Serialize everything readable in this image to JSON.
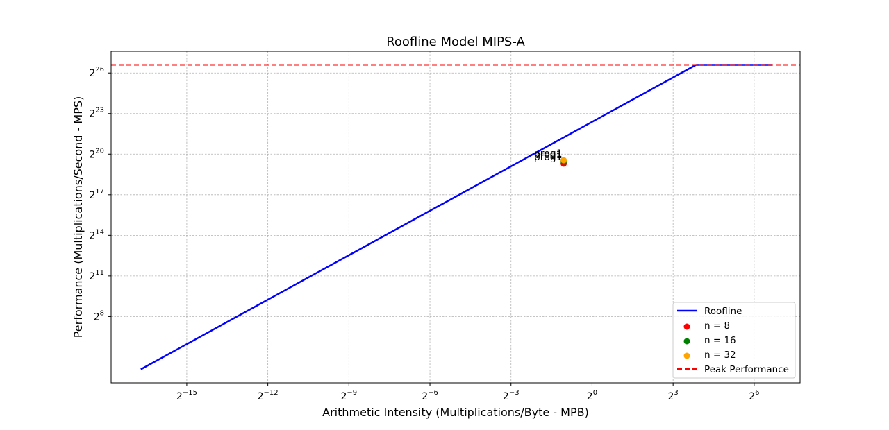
{
  "chart_data": {
    "type": "line",
    "title": "Roofline Model MIPS-A",
    "xlabel": "Arithmetic Intensity (Multiplications/Byte - MPB)",
    "ylabel": "Performance (Multiplications/Second - MPS)",
    "xscale": "log2",
    "yscale": "log2",
    "xlim_log2": [
      -17.8,
      7.7
    ],
    "ylim_log2": [
      3.1,
      27.6
    ],
    "xticks_log2": [
      -15,
      -12,
      -9,
      -6,
      -3,
      0,
      3,
      6
    ],
    "yticks_log2": [
      8,
      11,
      14,
      17,
      20,
      23,
      26
    ],
    "x_tick_labels": [
      {
        "base": "2",
        "exp": "−15"
      },
      {
        "base": "2",
        "exp": "−12"
      },
      {
        "base": "2",
        "exp": "−9"
      },
      {
        "base": "2",
        "exp": "−6"
      },
      {
        "base": "2",
        "exp": "−3"
      },
      {
        "base": "2",
        "exp": "0"
      },
      {
        "base": "2",
        "exp": "3"
      },
      {
        "base": "2",
        "exp": "6"
      }
    ],
    "y_tick_labels": [
      {
        "base": "2",
        "exp": "8"
      },
      {
        "base": "2",
        "exp": "11"
      },
      {
        "base": "2",
        "exp": "14"
      },
      {
        "base": "2",
        "exp": "17"
      },
      {
        "base": "2",
        "exp": "20"
      },
      {
        "base": "2",
        "exp": "23"
      },
      {
        "base": "2",
        "exp": "26"
      }
    ],
    "grid": true,
    "legend_position": "lower right",
    "series": [
      {
        "name": "Roofline",
        "kind": "line",
        "color": "#0000ff",
        "x_log2": [
          -16.7,
          3.85,
          4.2,
          6.65
        ],
        "y_log2": [
          4.1,
          26.6,
          26.6,
          26.6
        ]
      },
      {
        "name": "n = 8",
        "kind": "scatter",
        "color": "#ff0000",
        "x_log2": [
          -1.05
        ],
        "y_log2": [
          19.3
        ]
      },
      {
        "name": "n = 16",
        "kind": "scatter",
        "color": "#008000",
        "x_log2": [
          -1.05
        ],
        "y_log2": [
          19.45
        ]
      },
      {
        "name": "n = 32",
        "kind": "scatter",
        "color": "#ffa500",
        "x_log2": [
          -1.05
        ],
        "y_log2": [
          19.55
        ]
      },
      {
        "name": "Peak Performance",
        "kind": "hline",
        "color": "#ff0000",
        "y_log2": 26.6
      }
    ],
    "annotations": [
      {
        "text": "prog1",
        "x_log2": -1.05,
        "y_log2": 19.3
      },
      {
        "text": "prog1",
        "x_log2": -1.05,
        "y_log2": 19.45
      },
      {
        "text": "prog1",
        "x_log2": -1.05,
        "y_log2": 19.55
      }
    ],
    "legend": [
      {
        "label": "Roofline",
        "marker": "line",
        "color": "#0000ff"
      },
      {
        "label": "n = 8",
        "marker": "dot",
        "color": "#ff0000"
      },
      {
        "label": "n = 16",
        "marker": "dot",
        "color": "#008000"
      },
      {
        "label": "n = 32",
        "marker": "dot",
        "color": "#ffa500"
      },
      {
        "label": "Peak Performance",
        "marker": "dash",
        "color": "#ff0000"
      }
    ]
  }
}
